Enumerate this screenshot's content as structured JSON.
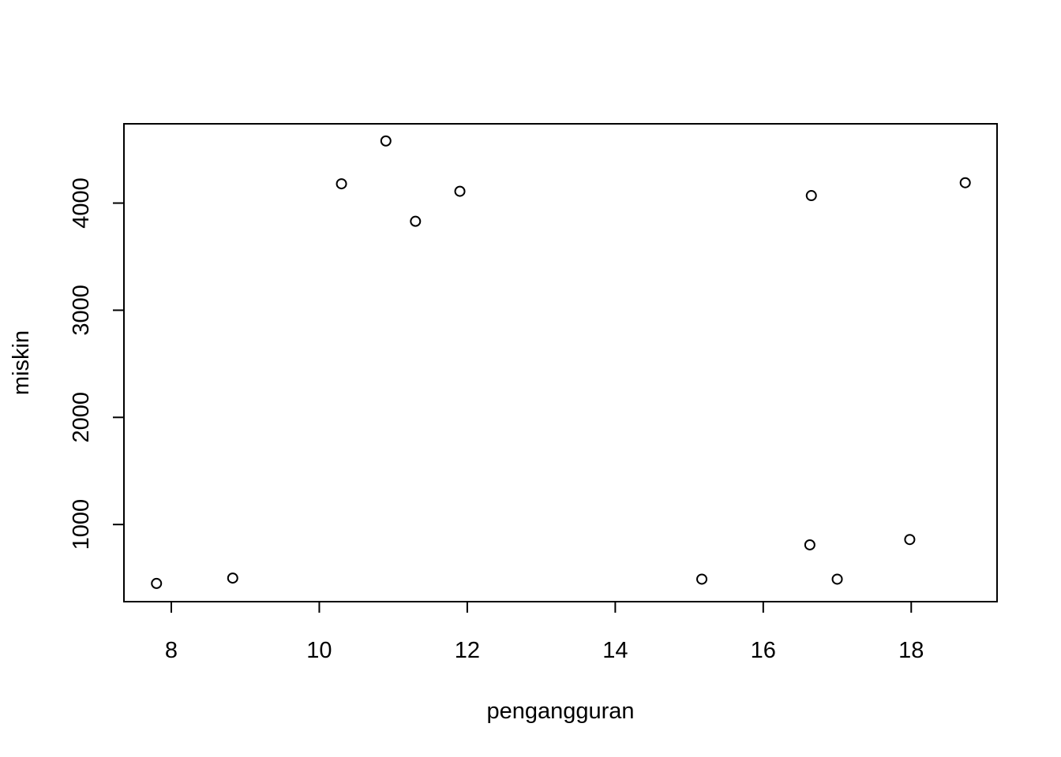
{
  "chart_data": {
    "type": "scatter",
    "title": "",
    "xlabel": "pengangguran",
    "ylabel": "miskin",
    "xlim": [
      7.36,
      19.16
    ],
    "ylim": [
      280,
      4740
    ],
    "xticks": [
      8,
      10,
      12,
      14,
      16,
      18
    ],
    "yticks": [
      1000,
      2000,
      3000,
      4000
    ],
    "xtick_labels": [
      "8",
      "10",
      "12",
      "14",
      "16",
      "18"
    ],
    "ytick_labels": [
      "1000",
      "2000",
      "3000",
      "4000"
    ],
    "grid": false,
    "marker": "open-circle",
    "colors": {
      "marker": "#000000",
      "axis": "#000000",
      "background": "#ffffff"
    },
    "points": [
      {
        "x": 7.8,
        "y": 450
      },
      {
        "x": 8.83,
        "y": 500
      },
      {
        "x": 10.3,
        "y": 4180
      },
      {
        "x": 10.9,
        "y": 4580
      },
      {
        "x": 11.3,
        "y": 3830
      },
      {
        "x": 11.9,
        "y": 4110
      },
      {
        "x": 15.17,
        "y": 490
      },
      {
        "x": 16.63,
        "y": 810
      },
      {
        "x": 16.65,
        "y": 4070
      },
      {
        "x": 17.0,
        "y": 490
      },
      {
        "x": 17.98,
        "y": 860
      },
      {
        "x": 18.73,
        "y": 4190
      }
    ]
  }
}
